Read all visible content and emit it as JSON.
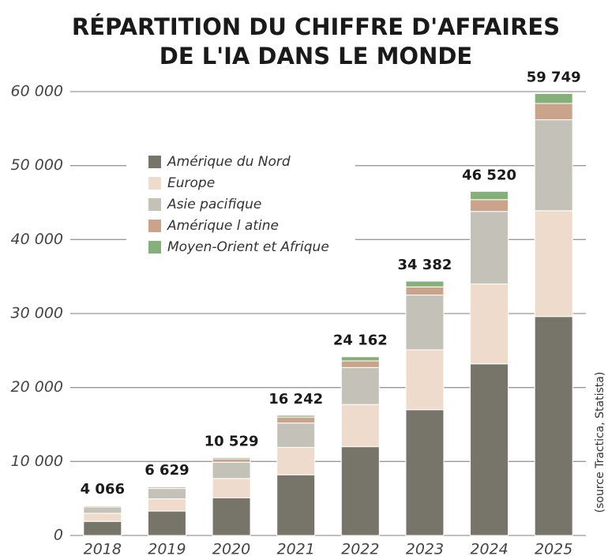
{
  "chart_data": {
    "type": "stacked_bar",
    "title": [
      "RÉPARTITION DU CHIFFRE D'AFFAIRES",
      "DE L'IA DANS LE MONDE"
    ],
    "source": "(source Tractica, Statista)",
    "categories": [
      "2018",
      "2019",
      "2020",
      "2021",
      "2022",
      "2023",
      "2024",
      "2025"
    ],
    "series": [
      {
        "name": "Amérique du Nord",
        "color": "#77746a",
        "values": [
          1900,
          3300,
          5100,
          8200,
          12000,
          17000,
          23200,
          29600
        ]
      },
      {
        "name": "Europe",
        "color": "#eedbcc",
        "values": [
          1100,
          1650,
          2600,
          3700,
          5700,
          8100,
          10800,
          14300
        ]
      },
      {
        "name": "Asie pacifique",
        "color": "#c4c2b8",
        "values": [
          850,
          1400,
          2200,
          3300,
          5000,
          7400,
          9800,
          12300
        ]
      },
      {
        "name": "Amérique l atine",
        "color": "#c9a48b",
        "values": [
          150,
          200,
          450,
          800,
          900,
          1100,
          1600,
          2200
        ]
      },
      {
        "name": "Moyen-Orient et Afrique",
        "color": "#86b07a",
        "values": [
          66,
          79,
          179,
          242,
          562,
          782,
          1120,
          1349
        ]
      }
    ],
    "totals": [
      4066,
      6629,
      10529,
      16242,
      24162,
      34382,
      46520,
      59749
    ],
    "total_labels": [
      "4 066",
      "6 629",
      "10 529",
      "16 242",
      "24 162",
      "34 382",
      "46 520",
      "59 749"
    ],
    "ylim": [
      0,
      60000
    ],
    "yticks": [
      0,
      {
        "value": 10000,
        "label": "10 000"
      },
      {
        "value": 20000,
        "label": "20 000"
      },
      {
        "value": 30000,
        "label": "30 000"
      },
      {
        "value": 40000,
        "label": "40 000"
      },
      {
        "value": 50000,
        "label": "50 000"
      },
      {
        "value": 60000,
        "label": "60 000"
      }
    ],
    "grid": true
  }
}
